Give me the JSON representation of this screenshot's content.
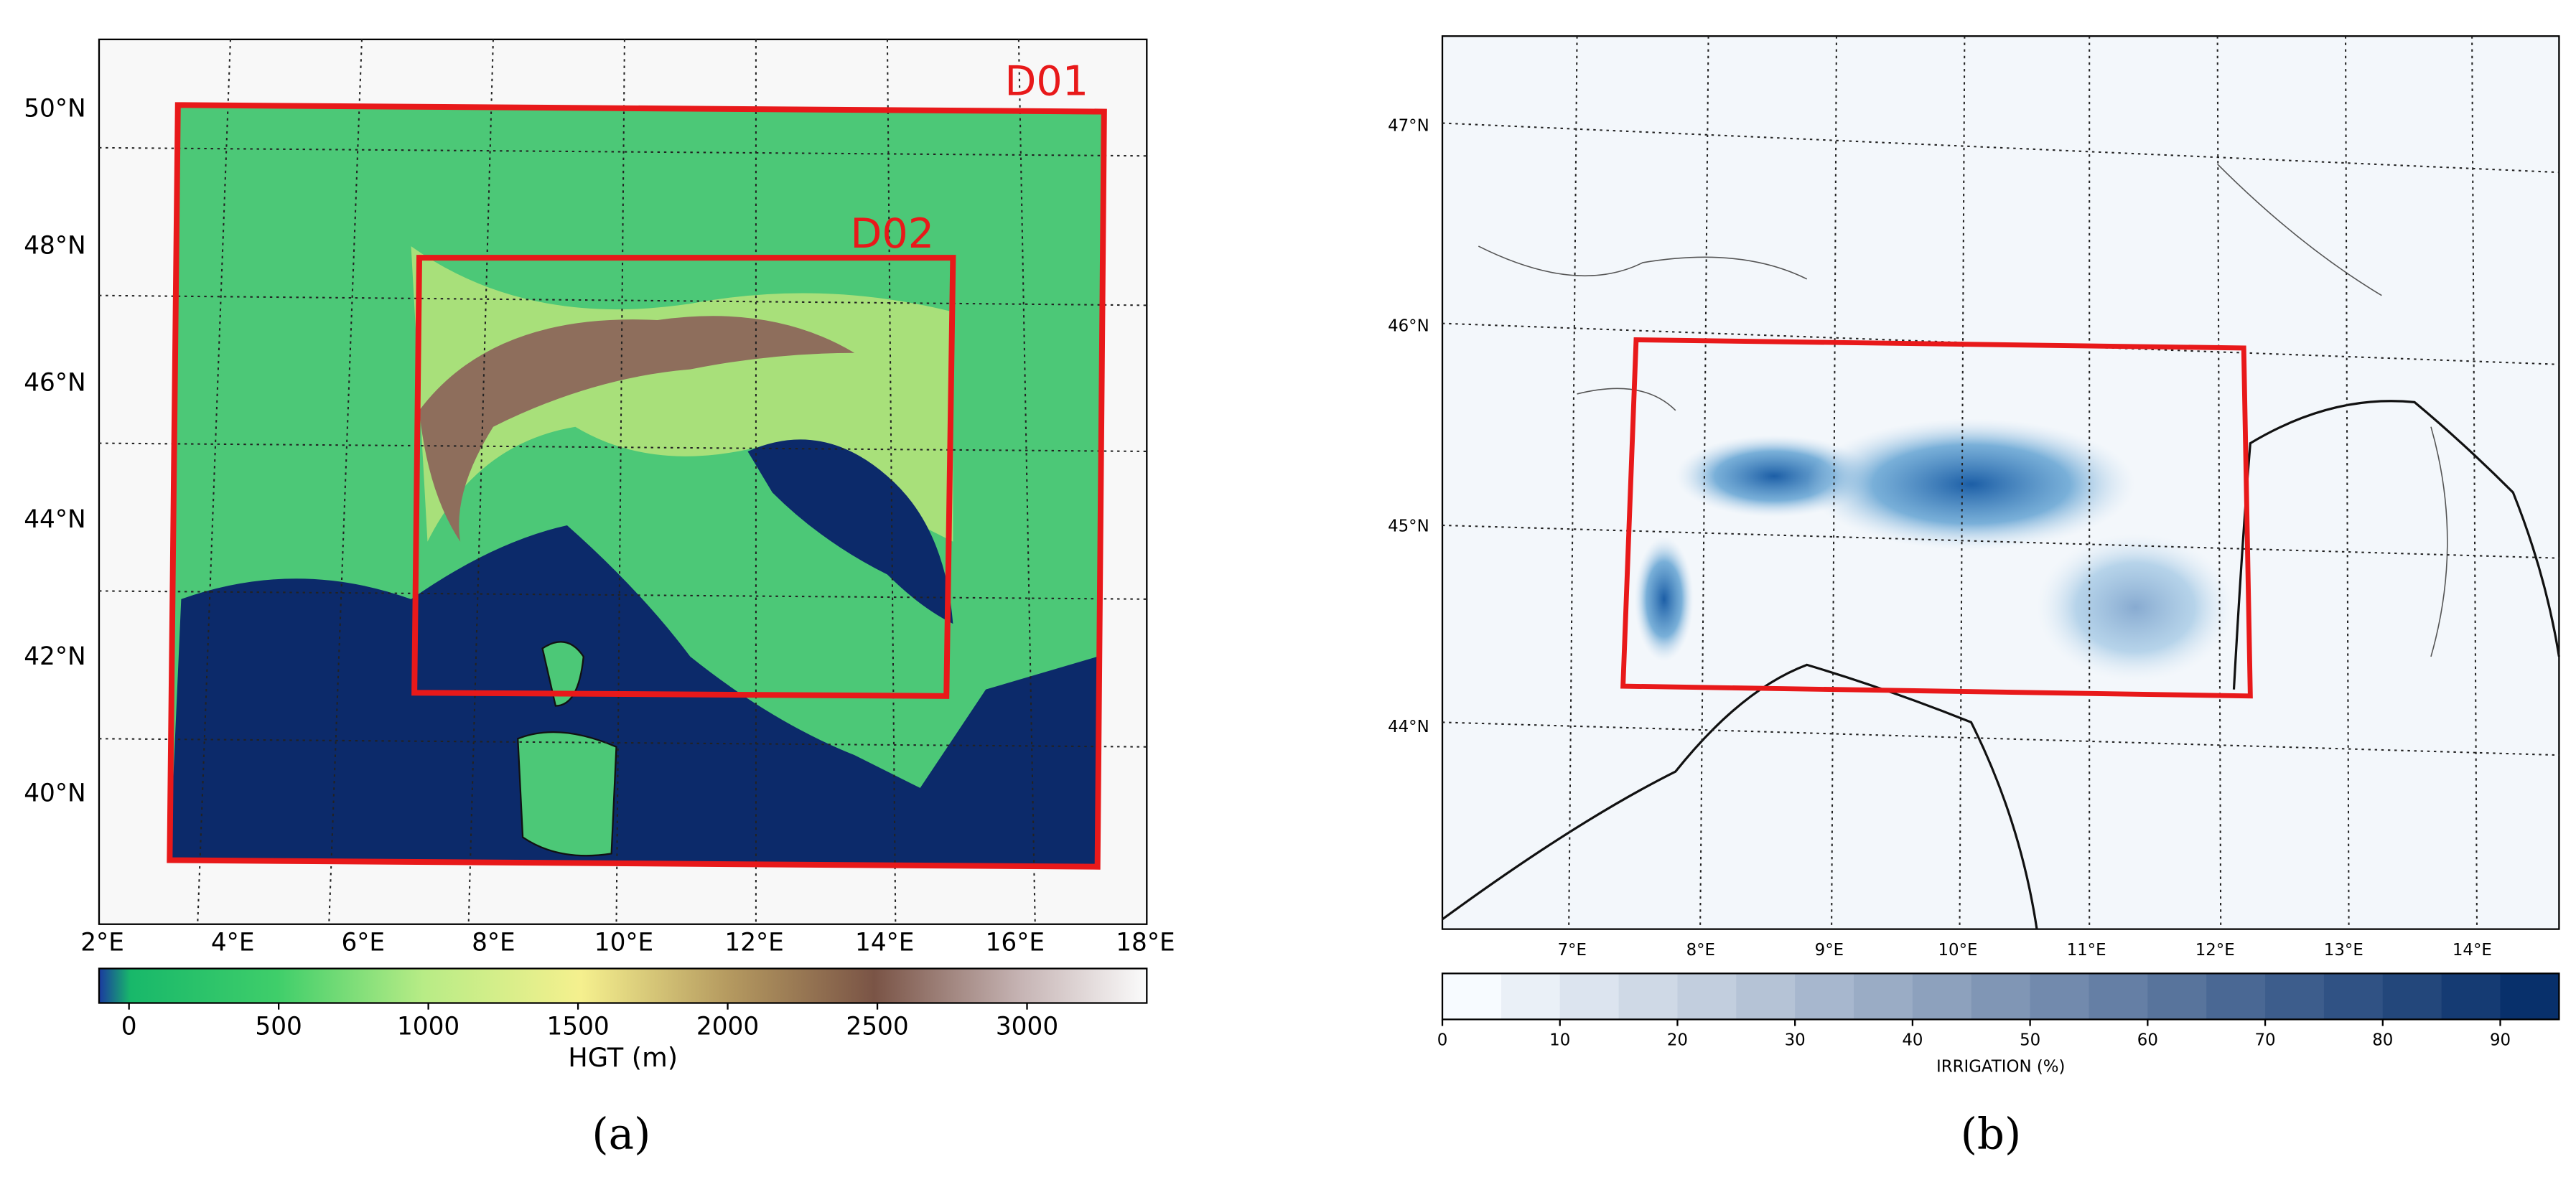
{
  "panels": [
    {
      "label": "(a)",
      "domain_labels": [
        "D01",
        "D02"
      ],
      "lat_labels": [
        "50°N",
        "48°N",
        "46°N",
        "44°N",
        "42°N",
        "40°N"
      ],
      "lon_labels": [
        "2°E",
        "4°E",
        "6°E",
        "8°E",
        "10°E",
        "12°E",
        "14°E",
        "16°E",
        "18°E"
      ],
      "colorbar": {
        "label": "HGT (m)",
        "range": [
          -100,
          3400
        ],
        "ticks": [
          0,
          500,
          1000,
          1500,
          2000,
          2500,
          3000
        ]
      }
    },
    {
      "label": "(b)",
      "lat_labels": [
        "47°N",
        "46°N",
        "45°N",
        "44°N"
      ],
      "lon_labels": [
        "7°E",
        "8°E",
        "9°E",
        "10°E",
        "11°E",
        "12°E",
        "13°E",
        "14°E"
      ],
      "colorbar": {
        "label": "IRRIGATION  (%)",
        "range": [
          0,
          95
        ],
        "ticks": [
          0,
          10,
          20,
          30,
          40,
          50,
          60,
          70,
          80,
          90
        ]
      }
    }
  ]
}
